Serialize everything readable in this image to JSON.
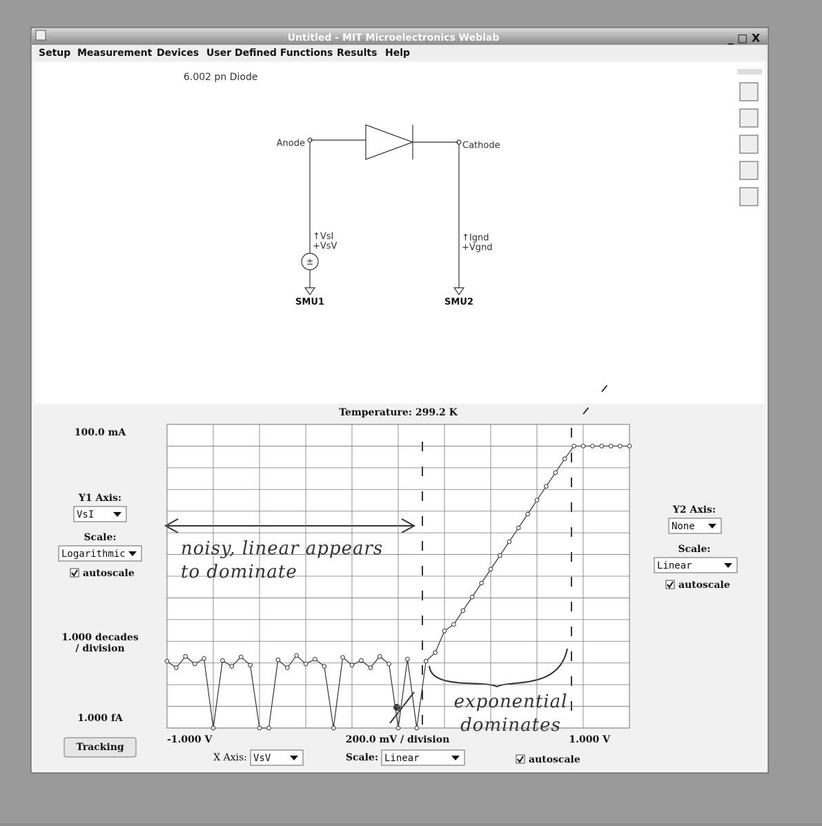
{
  "window": {
    "title": "Untitled - MIT Microelectronics Weblab",
    "menu": [
      "Setup",
      "Measurement",
      "Devices",
      "User Defined Functions",
      "Results",
      "Help"
    ]
  },
  "schematic": {
    "title": "6.002 pn Diode",
    "anode": "Anode",
    "cathode": "Cathode",
    "source_current": "↑VsI",
    "source_voltage": "+VsV",
    "ground_current": "↑Ignd",
    "ground_voltage": "+Vgnd",
    "smu1": "SMU1",
    "smu2": "SMU2"
  },
  "controls": {
    "y1_axis_label": "Y1 Axis:",
    "y1_axis_value": "VsI",
    "y1_scale_label": "Scale:",
    "y1_scale_value": "Logarithmic",
    "y1_autoscale": "autoscale",
    "tracking": "Tracking",
    "x_axis_label": "X Axis:",
    "x_axis_value": "VsV",
    "x_scale_label": "Scale:",
    "x_scale_value": "Linear",
    "x_autoscale": "autoscale",
    "y2_axis_label": "Y2 Axis:",
    "y2_axis_value": "None",
    "y2_scale_label": "Scale:",
    "y2_scale_value": "Linear",
    "y2_autoscale": "autoscale"
  },
  "chart_data": {
    "type": "scatter",
    "title": "Temperature: 299.2 K",
    "x_division_label": "200.0 mV / division",
    "y_division_label": "1.000 decades / division",
    "yscale": "log",
    "color": "#333333",
    "grid": true,
    "xlim": [
      -1,
      1
    ],
    "ylim": [
      1e-15,
      0.1
    ],
    "xticks": [
      {
        "value": -1,
        "label": "-1.000 V"
      },
      {
        "value": 1,
        "label": "1.000 V"
      }
    ],
    "yticks": [
      {
        "value": 1e-15,
        "label": "1.000 fA"
      },
      {
        "value": 0.1,
        "label": "100.0 mA"
      }
    ],
    "xgrid": [
      -1,
      -0.8,
      -0.6,
      -0.4,
      -0.2,
      0,
      0.2,
      0.4,
      0.6,
      0.8,
      1
    ],
    "ygrid": [
      1e-15,
      1e-14,
      1e-13,
      1e-12,
      1e-11,
      1e-10,
      1e-09,
      1e-08,
      1e-07,
      1e-06,
      1e-05,
      0.0001,
      0.001,
      0.01,
      0.1
    ],
    "x": [
      -1.0,
      -0.96,
      -0.92,
      -0.88,
      -0.84,
      -0.8,
      -0.76,
      -0.72,
      -0.68,
      -0.64,
      -0.6,
      -0.56,
      -0.52,
      -0.48,
      -0.44,
      -0.4,
      -0.36,
      -0.32,
      -0.28,
      -0.24,
      -0.2,
      -0.16,
      -0.12,
      -0.08,
      -0.04,
      0.0,
      0.04,
      0.08,
      0.12,
      0.16,
      0.2,
      0.24,
      0.28,
      0.32,
      0.36,
      0.4,
      0.44,
      0.48,
      0.52,
      0.56,
      0.6,
      0.64,
      0.68,
      0.72,
      0.76,
      0.8,
      0.84,
      0.88,
      0.92,
      0.96,
      1.0
    ],
    "values": [
      1.2e-12,
      6e-13,
      2e-12,
      9e-13,
      1.6e-12,
      1e-15,
      1.3e-12,
      7e-13,
      1.9e-12,
      8e-13,
      1e-15,
      1e-15,
      1.4e-12,
      6e-13,
      2.2e-12,
      9e-13,
      1.5e-12,
      7e-13,
      1e-15,
      1.8e-12,
      8e-13,
      1.3e-12,
      6e-13,
      2e-12,
      9e-13,
      1e-15,
      1.5e-12,
      1e-15,
      1.2e-12,
      3e-12,
      3e-11,
      6e-11,
      2.6e-10,
      1.1e-09,
      4.8e-09,
      2.1e-08,
      9e-08,
      3.9e-07,
      1.7e-06,
      7.3e-06,
      3.2e-05,
      0.00014,
      0.0006,
      0.0026,
      0.01,
      0.01,
      0.01,
      0.01,
      0.01,
      0.01,
      0.01
    ],
    "annotations": [
      "noisy, linear appears to dominate",
      "exponential dominates"
    ]
  }
}
